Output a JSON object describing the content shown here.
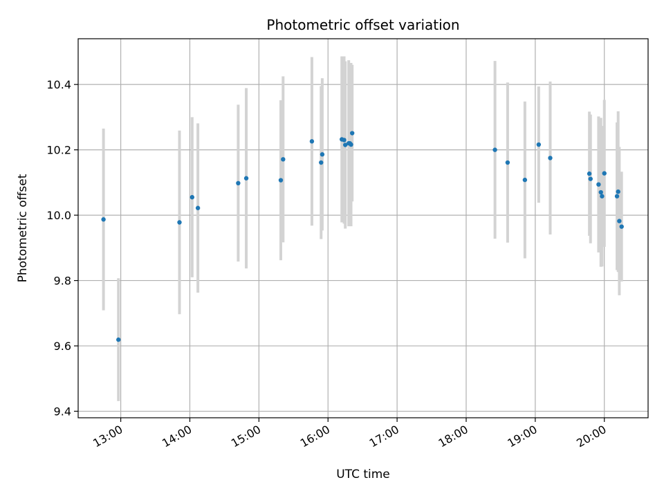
{
  "chart_data": {
    "type": "scatter",
    "title": "Photometric offset variation",
    "xlabel": "UTC time",
    "ylabel": "Photometric offset",
    "xlim": [
      "12:23",
      "20:38"
    ],
    "ylim": [
      9.38,
      10.54
    ],
    "x_ticks": [
      "13:00",
      "14:00",
      "15:00",
      "16:00",
      "17:00",
      "18:00",
      "19:00",
      "20:00"
    ],
    "y_ticks": [
      "9.4",
      "9.6",
      "9.8",
      "10.0",
      "10.2",
      "10.4"
    ],
    "grid": true,
    "legend": "none",
    "colors": {
      "point": "#1f77b4",
      "errorbar": "#d3d3d3",
      "grid": "#b0b0b0"
    },
    "points": [
      {
        "t": "12:45",
        "y": 9.987,
        "err": 0.278
      },
      {
        "t": "12:58",
        "y": 9.619,
        "err": 0.188
      },
      {
        "t": "13:51",
        "y": 9.978,
        "err": 0.281
      },
      {
        "t": "14:02",
        "y": 10.055,
        "err": 0.245
      },
      {
        "t": "14:07",
        "y": 10.022,
        "err": 0.259
      },
      {
        "t": "14:42",
        "y": 10.098,
        "err": 0.24
      },
      {
        "t": "14:49",
        "y": 10.113,
        "err": 0.276
      },
      {
        "t": "15:19",
        "y": 10.107,
        "err": 0.245
      },
      {
        "t": "15:21",
        "y": 10.171,
        "err": 0.254
      },
      {
        "t": "15:46",
        "y": 10.226,
        "err": 0.258
      },
      {
        "t": "15:54",
        "y": 10.161,
        "err": 0.234
      },
      {
        "t": "15:55",
        "y": 10.186,
        "err": 0.233
      },
      {
        "t": "16:12",
        "y": 10.232,
        "err": 0.254
      },
      {
        "t": "16:14",
        "y": 10.23,
        "err": 0.256
      },
      {
        "t": "16:15",
        "y": 10.215,
        "err": 0.256
      },
      {
        "t": "16:18",
        "y": 10.22,
        "err": 0.254
      },
      {
        "t": "16:19",
        "y": 10.22,
        "err": 0.241
      },
      {
        "t": "16:20",
        "y": 10.216,
        "err": 0.25
      },
      {
        "t": "16:21",
        "y": 10.251,
        "err": 0.209
      },
      {
        "t": "18:25",
        "y": 10.2,
        "err": 0.272
      },
      {
        "t": "18:36",
        "y": 10.161,
        "err": 0.245
      },
      {
        "t": "18:51",
        "y": 10.108,
        "err": 0.24
      },
      {
        "t": "19:03",
        "y": 10.216,
        "err": 0.178
      },
      {
        "t": "19:13",
        "y": 10.175,
        "err": 0.234
      },
      {
        "t": "19:47",
        "y": 10.127,
        "err": 0.19
      },
      {
        "t": "19:48",
        "y": 10.111,
        "err": 0.197
      },
      {
        "t": "19:55",
        "y": 10.094,
        "err": 0.208
      },
      {
        "t": "19:57",
        "y": 10.07,
        "err": 0.228
      },
      {
        "t": "19:58",
        "y": 10.058,
        "err": 0.215
      },
      {
        "t": "20:00",
        "y": 10.128,
        "err": 0.225
      },
      {
        "t": "20:11",
        "y": 10.058,
        "err": 0.226
      },
      {
        "t": "20:12",
        "y": 10.072,
        "err": 0.246
      },
      {
        "t": "20:13",
        "y": 9.982,
        "err": 0.227
      },
      {
        "t": "20:15",
        "y": 9.965,
        "err": 0.168
      }
    ]
  }
}
